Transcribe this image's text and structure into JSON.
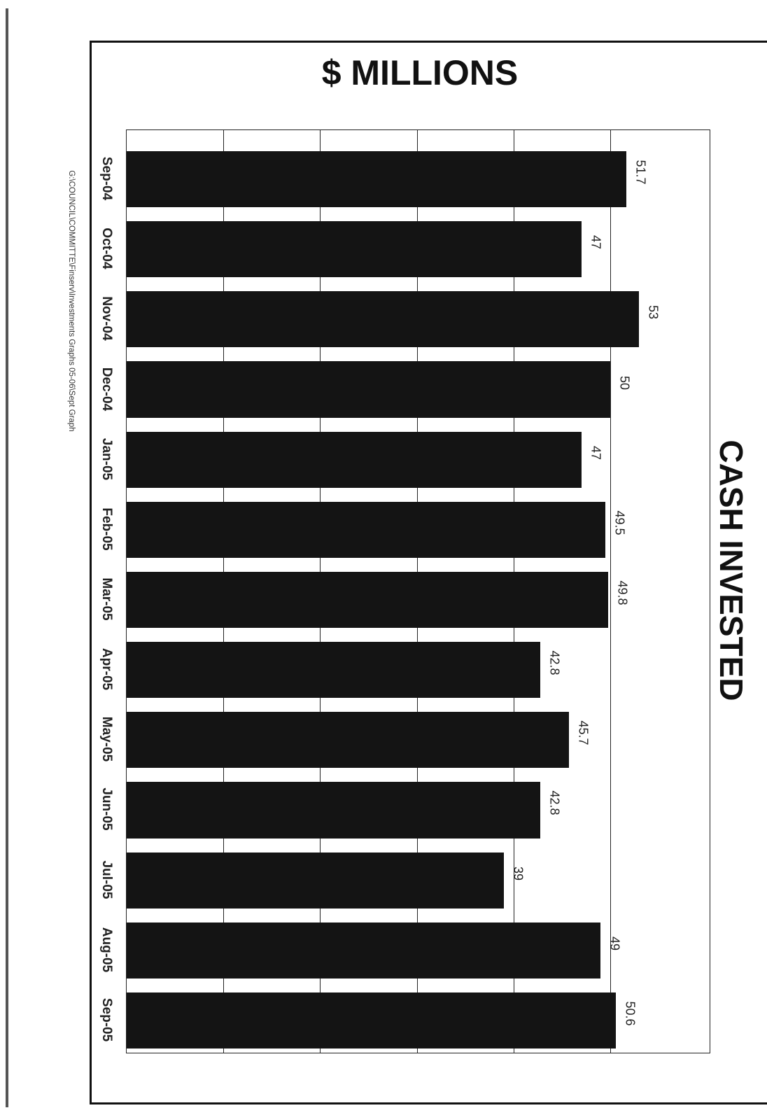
{
  "header_title": "$ MILLIONS",
  "side_title": "CASH INVESTED",
  "footer_path": "G:\\COUNCIL\\COMMITTE\\Finserv\\Investments Graphs 05-06\\Sept Graph",
  "colors": {
    "bar": "#141414",
    "frame": "#111111",
    "background": "#ffffff"
  },
  "chart_data": {
    "type": "bar",
    "orientation": "rotated 90° clockwise (bars grow toward the right edge of the page)",
    "title": "CASH INVESTED",
    "ylabel": "$ MILLIONS",
    "categories": [
      "Sep-04",
      "Oct-04",
      "Nov-04",
      "Dec-04",
      "Jan-05",
      "Feb-05",
      "Mar-05",
      "Apr-05",
      "May-05",
      "Jun-05",
      "Jul-05",
      "Aug-05",
      "Sep-05"
    ],
    "values": [
      51.7,
      47,
      53,
      50,
      47,
      49.5,
      49.8,
      42.8,
      45.7,
      42.8,
      39,
      49,
      50.6
    ],
    "value_labels": [
      "51.7",
      "47",
      "53",
      "50",
      "47",
      "49.5",
      "49.8",
      "42.8",
      "45.7",
      "42.8",
      "39",
      "49",
      "50.6"
    ],
    "ylim": [
      0,
      60
    ],
    "grid": true,
    "gridline_step": 10
  }
}
